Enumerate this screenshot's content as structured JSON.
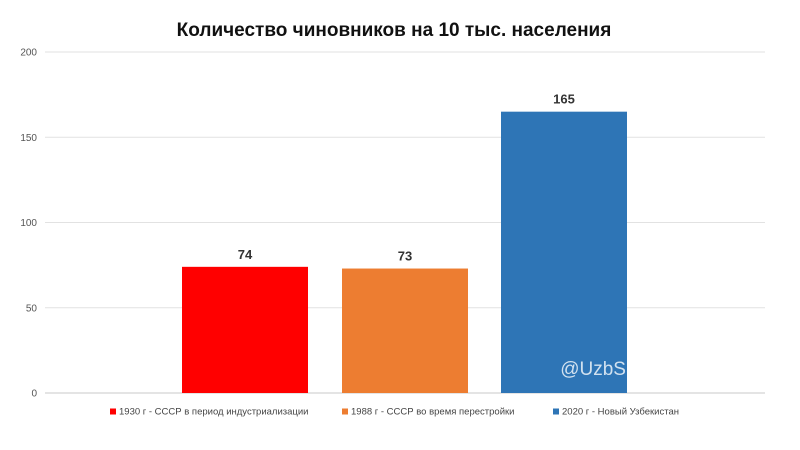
{
  "chart_data": {
    "type": "bar",
    "title": "Количество чиновников на 10 тыс. населения",
    "categories": [
      "1930 г - СССР в период индустриализации",
      "1988 г - СССР во время перестройки",
      "2020 г - Новый Узбекистан"
    ],
    "values": [
      74,
      73,
      165
    ],
    "colors": [
      "#ff0000",
      "#ed7d31",
      "#2e75b6"
    ],
    "ylim": [
      0,
      200
    ],
    "yticks": [
      0,
      50,
      100,
      150,
      200
    ],
    "grid": true,
    "legend": "bottom",
    "xlabel": "",
    "ylabel": ""
  },
  "watermark": {
    "text": "@UzbSSR | uzcomm.su"
  }
}
